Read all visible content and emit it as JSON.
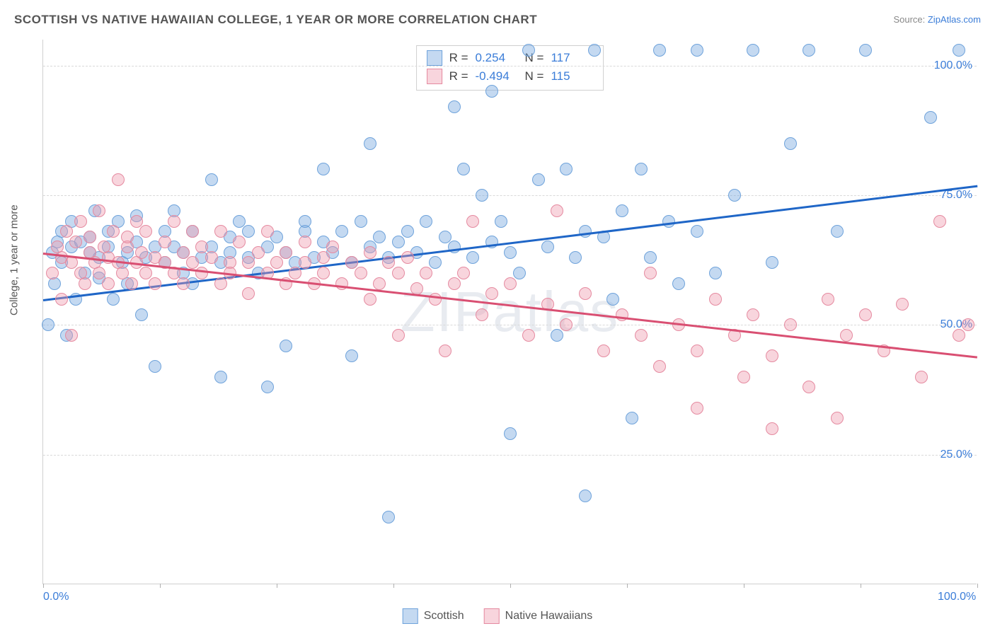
{
  "title": "SCOTTISH VS NATIVE HAWAIIAN COLLEGE, 1 YEAR OR MORE CORRELATION CHART",
  "source_prefix": "Source: ",
  "source_link": "ZipAtlas.com",
  "y_axis_title": "College, 1 year or more",
  "watermark": "ZIPatlas",
  "chart": {
    "type": "scatter",
    "xlim": [
      0,
      100
    ],
    "ylim": [
      0,
      105
    ],
    "x_ticks": [
      0,
      12.5,
      25,
      37.5,
      50,
      62.5,
      75,
      87.5,
      100
    ],
    "y_gridlines": [
      25,
      50,
      75,
      100
    ],
    "y_tick_labels": {
      "25": "25.0%",
      "50": "50.0%",
      "75": "75.0%",
      "100": "100.0%"
    },
    "x_tick_labels": {
      "0": "0.0%",
      "100": "100.0%"
    },
    "background_color": "#ffffff",
    "grid_color": "#d9d9d9",
    "point_radius": 9,
    "series": [
      {
        "name": "Scottish",
        "fill": "rgba(125,170,225,0.45)",
        "stroke": "#6fa3db",
        "trend": {
          "y_at_x0": 55,
          "y_at_x100": 77,
          "color": "#1f66c7",
          "width": 2.5
        },
        "R": "0.254",
        "N": "117",
        "points": [
          [
            0.5,
            50
          ],
          [
            1,
            64
          ],
          [
            1.2,
            58
          ],
          [
            1.5,
            66
          ],
          [
            2,
            62
          ],
          [
            2,
            68
          ],
          [
            2.5,
            48
          ],
          [
            3,
            65
          ],
          [
            3,
            70
          ],
          [
            3.5,
            55
          ],
          [
            4,
            66
          ],
          [
            4.5,
            60
          ],
          [
            5,
            64
          ],
          [
            5,
            67
          ],
          [
            5.5,
            72
          ],
          [
            6,
            63
          ],
          [
            6,
            59
          ],
          [
            7,
            65
          ],
          [
            7,
            68
          ],
          [
            7.5,
            55
          ],
          [
            8,
            70
          ],
          [
            8.5,
            62
          ],
          [
            9,
            64
          ],
          [
            9,
            58
          ],
          [
            10,
            66
          ],
          [
            10,
            71
          ],
          [
            10.5,
            52
          ],
          [
            11,
            63
          ],
          [
            12,
            65
          ],
          [
            12,
            42
          ],
          [
            13,
            68
          ],
          [
            13,
            62
          ],
          [
            14,
            65
          ],
          [
            14,
            72
          ],
          [
            15,
            60
          ],
          [
            15,
            64
          ],
          [
            16,
            68
          ],
          [
            16,
            58
          ],
          [
            17,
            63
          ],
          [
            18,
            65
          ],
          [
            18,
            78
          ],
          [
            19,
            62
          ],
          [
            19,
            40
          ],
          [
            20,
            67
          ],
          [
            20,
            64
          ],
          [
            21,
            70
          ],
          [
            22,
            63
          ],
          [
            22,
            68
          ],
          [
            23,
            60
          ],
          [
            24,
            65
          ],
          [
            24,
            38
          ],
          [
            25,
            67
          ],
          [
            26,
            64
          ],
          [
            26,
            46
          ],
          [
            27,
            62
          ],
          [
            28,
            68
          ],
          [
            28,
            70
          ],
          [
            29,
            63
          ],
          [
            30,
            66
          ],
          [
            30,
            80
          ],
          [
            31,
            64
          ],
          [
            32,
            68
          ],
          [
            33,
            62
          ],
          [
            33,
            44
          ],
          [
            34,
            70
          ],
          [
            35,
            65
          ],
          [
            35,
            85
          ],
          [
            36,
            67
          ],
          [
            37,
            63
          ],
          [
            37,
            13
          ],
          [
            38,
            66
          ],
          [
            39,
            68
          ],
          [
            40,
            64
          ],
          [
            41,
            70
          ],
          [
            42,
            62
          ],
          [
            43,
            67
          ],
          [
            44,
            65
          ],
          [
            44,
            92
          ],
          [
            45,
            80
          ],
          [
            46,
            63
          ],
          [
            47,
            75
          ],
          [
            48,
            66
          ],
          [
            48,
            95
          ],
          [
            49,
            70
          ],
          [
            50,
            64
          ],
          [
            50,
            29
          ],
          [
            51,
            60
          ],
          [
            52,
            103
          ],
          [
            53,
            78
          ],
          [
            54,
            65
          ],
          [
            55,
            48
          ],
          [
            56,
            80
          ],
          [
            57,
            63
          ],
          [
            58,
            68
          ],
          [
            58,
            17
          ],
          [
            59,
            103
          ],
          [
            60,
            67
          ],
          [
            61,
            55
          ],
          [
            62,
            72
          ],
          [
            63,
            32
          ],
          [
            64,
            80
          ],
          [
            65,
            63
          ],
          [
            66,
            103
          ],
          [
            67,
            70
          ],
          [
            68,
            58
          ],
          [
            70,
            68
          ],
          [
            70,
            103
          ],
          [
            72,
            60
          ],
          [
            74,
            75
          ],
          [
            76,
            103
          ],
          [
            78,
            62
          ],
          [
            80,
            85
          ],
          [
            82,
            103
          ],
          [
            85,
            68
          ],
          [
            88,
            103
          ],
          [
            95,
            90
          ],
          [
            98,
            103
          ]
        ]
      },
      {
        "name": "Native Hawaiians",
        "fill": "rgba(238,150,170,0.40)",
        "stroke": "#e58aa0",
        "trend": {
          "y_at_x0": 64,
          "y_at_x100": 44,
          "color": "#d94f72",
          "width": 2.5
        },
        "R": "-0.494",
        "N": "115",
        "points": [
          [
            1,
            60
          ],
          [
            1.5,
            65
          ],
          [
            2,
            63
          ],
          [
            2,
            55
          ],
          [
            2.5,
            68
          ],
          [
            3,
            62
          ],
          [
            3,
            48
          ],
          [
            3.5,
            66
          ],
          [
            4,
            60
          ],
          [
            4,
            70
          ],
          [
            4.5,
            58
          ],
          [
            5,
            64
          ],
          [
            5,
            67
          ],
          [
            5.5,
            62
          ],
          [
            6,
            60
          ],
          [
            6,
            72
          ],
          [
            6.5,
            65
          ],
          [
            7,
            63
          ],
          [
            7,
            58
          ],
          [
            7.5,
            68
          ],
          [
            8,
            62
          ],
          [
            8,
            78
          ],
          [
            8.5,
            60
          ],
          [
            9,
            65
          ],
          [
            9,
            67
          ],
          [
            9.5,
            58
          ],
          [
            10,
            62
          ],
          [
            10,
            70
          ],
          [
            10.5,
            64
          ],
          [
            11,
            60
          ],
          [
            11,
            68
          ],
          [
            12,
            63
          ],
          [
            12,
            58
          ],
          [
            13,
            66
          ],
          [
            13,
            62
          ],
          [
            14,
            60
          ],
          [
            14,
            70
          ],
          [
            15,
            64
          ],
          [
            15,
            58
          ],
          [
            16,
            62
          ],
          [
            16,
            68
          ],
          [
            17,
            60
          ],
          [
            17,
            65
          ],
          [
            18,
            63
          ],
          [
            19,
            68
          ],
          [
            19,
            58
          ],
          [
            20,
            62
          ],
          [
            20,
            60
          ],
          [
            21,
            66
          ],
          [
            22,
            62
          ],
          [
            22,
            56
          ],
          [
            23,
            64
          ],
          [
            24,
            60
          ],
          [
            24,
            68
          ],
          [
            25,
            62
          ],
          [
            26,
            58
          ],
          [
            26,
            64
          ],
          [
            27,
            60
          ],
          [
            28,
            62
          ],
          [
            28,
            66
          ],
          [
            29,
            58
          ],
          [
            30,
            63
          ],
          [
            30,
            60
          ],
          [
            31,
            65
          ],
          [
            32,
            58
          ],
          [
            33,
            62
          ],
          [
            34,
            60
          ],
          [
            35,
            64
          ],
          [
            35,
            55
          ],
          [
            36,
            58
          ],
          [
            37,
            62
          ],
          [
            38,
            60
          ],
          [
            38,
            48
          ],
          [
            39,
            63
          ],
          [
            40,
            57
          ],
          [
            41,
            60
          ],
          [
            42,
            55
          ],
          [
            43,
            45
          ],
          [
            44,
            58
          ],
          [
            45,
            60
          ],
          [
            46,
            70
          ],
          [
            47,
            52
          ],
          [
            48,
            56
          ],
          [
            50,
            58
          ],
          [
            52,
            48
          ],
          [
            54,
            54
          ],
          [
            55,
            72
          ],
          [
            56,
            50
          ],
          [
            58,
            56
          ],
          [
            60,
            45
          ],
          [
            62,
            52
          ],
          [
            64,
            48
          ],
          [
            65,
            60
          ],
          [
            66,
            42
          ],
          [
            68,
            50
          ],
          [
            70,
            45
          ],
          [
            70,
            34
          ],
          [
            72,
            55
          ],
          [
            74,
            48
          ],
          [
            75,
            40
          ],
          [
            76,
            52
          ],
          [
            78,
            30
          ],
          [
            78,
            44
          ],
          [
            80,
            50
          ],
          [
            82,
            38
          ],
          [
            84,
            55
          ],
          [
            85,
            32
          ],
          [
            86,
            48
          ],
          [
            88,
            52
          ],
          [
            90,
            45
          ],
          [
            92,
            54
          ],
          [
            94,
            40
          ],
          [
            96,
            70
          ],
          [
            98,
            48
          ],
          [
            99,
            50
          ]
        ]
      }
    ]
  },
  "legend_top": {
    "rows": [
      {
        "sw_fill": "rgba(125,170,225,0.45)",
        "sw_stroke": "#6fa3db",
        "r_label": "R =",
        "r_val": "0.254",
        "n_label": "N =",
        "n_val": "117"
      },
      {
        "sw_fill": "rgba(238,150,170,0.40)",
        "sw_stroke": "#e58aa0",
        "r_label": "R =",
        "r_val": "-0.494",
        "n_label": "N =",
        "n_val": "115"
      }
    ]
  },
  "legend_bottom": [
    {
      "sw_fill": "rgba(125,170,225,0.45)",
      "sw_stroke": "#6fa3db",
      "label": "Scottish"
    },
    {
      "sw_fill": "rgba(238,150,170,0.40)",
      "sw_stroke": "#e58aa0",
      "label": "Native Hawaiians"
    }
  ]
}
